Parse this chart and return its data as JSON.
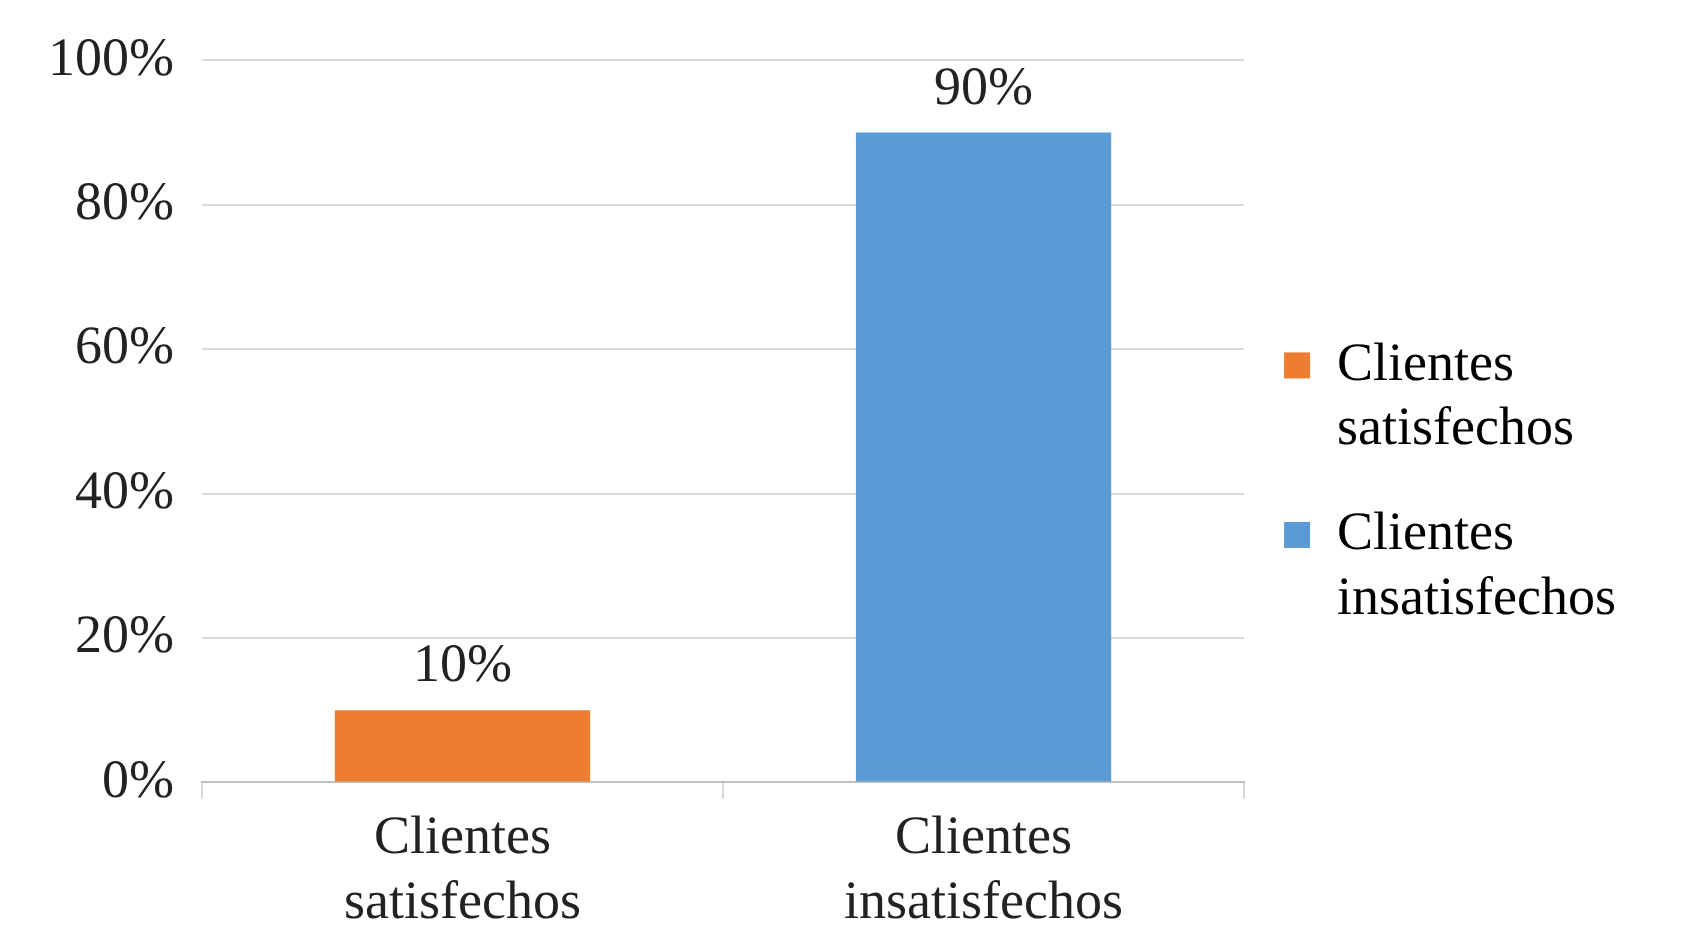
{
  "chart_data": {
    "type": "bar",
    "categories": [
      "Clientes satisfechos",
      "Clientes insatisfechos"
    ],
    "series": [
      {
        "name": "Clientes satisfechos",
        "color": "#ed7d31",
        "values": [
          10,
          null
        ],
        "value_labels": [
          "10%",
          null
        ]
      },
      {
        "name": "Clientes insatisfechos",
        "color": "#5b9bd5",
        "values": [
          null,
          90
        ],
        "value_labels": [
          null,
          "90%"
        ]
      }
    ],
    "ylim": [
      0,
      100
    ],
    "yticks": [
      {
        "value": 0,
        "label": "0%"
      },
      {
        "value": 20,
        "label": "20%"
      },
      {
        "value": 40,
        "label": "40%"
      },
      {
        "value": 60,
        "label": "60%"
      },
      {
        "value": 80,
        "label": "80%"
      },
      {
        "value": 100,
        "label": "100%"
      }
    ],
    "grid": "y",
    "legend": "right"
  }
}
